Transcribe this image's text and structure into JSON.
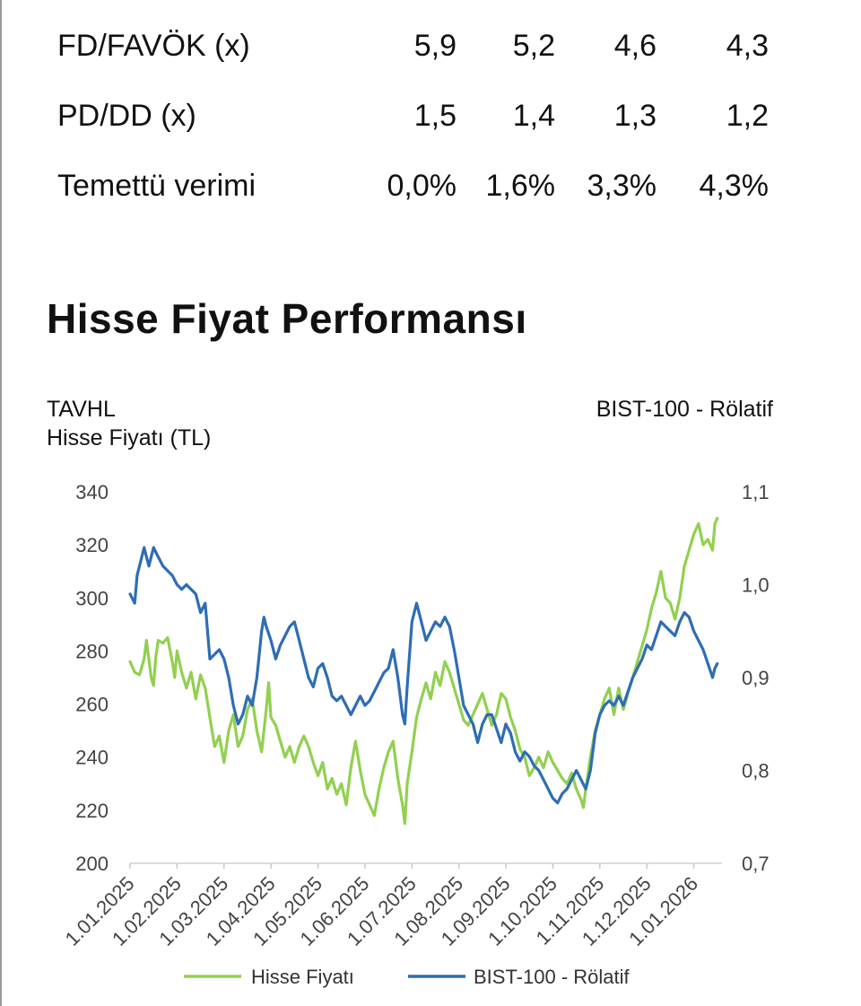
{
  "valuation_table": {
    "rows": [
      {
        "label": "FD/FAVÖK (x)",
        "values": [
          "5,9",
          "5,2",
          "4,6",
          "4,3"
        ]
      },
      {
        "label": "PD/DD (x)",
        "values": [
          "1,5",
          "1,4",
          "1,3",
          "1,2"
        ]
      },
      {
        "label": "Temettü verimi",
        "values": [
          "0,0%",
          "1,6%",
          "3,3%",
          "4,3%"
        ]
      }
    ]
  },
  "section": {
    "title": "Hisse Fiyat Performansı"
  },
  "chart_data": {
    "type": "line",
    "left_axis_title": [
      "TAVHL",
      "Hisse Fiyatı (TL)"
    ],
    "right_axis_title": "BIST-100 - Rölatif",
    "x_tick_labels": [
      "1.01.2025",
      "1.02.2025",
      "1.03.2025",
      "1.04.2025",
      "1.05.2025",
      "1.06.2025",
      "1.07.2025",
      "1.08.2025",
      "1.09.2025",
      "1.10.2025",
      "1.11.2025",
      "1.12.2025",
      "1.01.2026"
    ],
    "y_left": {
      "min": 200,
      "max": 340,
      "ticks": [
        200,
        220,
        240,
        260,
        280,
        300,
        320,
        340
      ],
      "tick_labels": [
        "200",
        "220",
        "240",
        "260",
        "280",
        "300",
        "320",
        "340"
      ]
    },
    "y_right": {
      "min": 0.7,
      "max": 1.1,
      "ticks": [
        0.7,
        0.8,
        0.9,
        1.0,
        1.1
      ],
      "tick_labels": [
        "0,7",
        "0,8",
        "0,9",
        "1,0",
        "1,1"
      ]
    },
    "x_range_months": [
      0,
      12.6
    ],
    "series": [
      {
        "name": "Hisse Fiyatı",
        "axis": "left",
        "color": "#92D050",
        "points": [
          [
            0,
            276
          ],
          [
            0.1,
            272
          ],
          [
            0.2,
            271
          ],
          [
            0.3,
            277
          ],
          [
            0.35,
            284
          ],
          [
            0.45,
            270
          ],
          [
            0.5,
            267
          ],
          [
            0.55,
            278
          ],
          [
            0.6,
            284
          ],
          [
            0.7,
            283
          ],
          [
            0.8,
            285
          ],
          [
            0.9,
            276
          ],
          [
            0.95,
            270
          ],
          [
            1.0,
            280
          ],
          [
            1.1,
            272
          ],
          [
            1.2,
            266
          ],
          [
            1.3,
            272
          ],
          [
            1.4,
            262
          ],
          [
            1.5,
            271
          ],
          [
            1.6,
            266
          ],
          [
            1.7,
            255
          ],
          [
            1.8,
            244
          ],
          [
            1.9,
            248
          ],
          [
            2.0,
            238
          ],
          [
            2.1,
            250
          ],
          [
            2.2,
            256
          ],
          [
            2.3,
            244
          ],
          [
            2.4,
            248
          ],
          [
            2.5,
            258
          ],
          [
            2.6,
            262
          ],
          [
            2.7,
            250
          ],
          [
            2.8,
            242
          ],
          [
            2.9,
            258
          ],
          [
            2.95,
            268
          ],
          [
            3.0,
            255
          ],
          [
            3.1,
            252
          ],
          [
            3.2,
            246
          ],
          [
            3.3,
            240
          ],
          [
            3.4,
            244
          ],
          [
            3.5,
            238
          ],
          [
            3.6,
            244
          ],
          [
            3.7,
            248
          ],
          [
            3.8,
            244
          ],
          [
            3.9,
            238
          ],
          [
            4.0,
            233
          ],
          [
            4.1,
            238
          ],
          [
            4.2,
            228
          ],
          [
            4.3,
            232
          ],
          [
            4.4,
            226
          ],
          [
            4.5,
            230
          ],
          [
            4.6,
            222
          ],
          [
            4.7,
            236
          ],
          [
            4.8,
            246
          ],
          [
            4.9,
            235
          ],
          [
            5.0,
            226
          ],
          [
            5.1,
            222
          ],
          [
            5.2,
            218
          ],
          [
            5.3,
            228
          ],
          [
            5.4,
            236
          ],
          [
            5.5,
            242
          ],
          [
            5.6,
            246
          ],
          [
            5.7,
            232
          ],
          [
            5.8,
            222
          ],
          [
            5.85,
            215
          ],
          [
            5.9,
            230
          ],
          [
            6.0,
            242
          ],
          [
            6.1,
            255
          ],
          [
            6.2,
            262
          ],
          [
            6.3,
            268
          ],
          [
            6.4,
            262
          ],
          [
            6.5,
            272
          ],
          [
            6.6,
            267
          ],
          [
            6.7,
            276
          ],
          [
            6.8,
            272
          ],
          [
            6.9,
            266
          ],
          [
            7.0,
            260
          ],
          [
            7.1,
            254
          ],
          [
            7.2,
            252
          ],
          [
            7.3,
            256
          ],
          [
            7.4,
            260
          ],
          [
            7.5,
            264
          ],
          [
            7.6,
            258
          ],
          [
            7.7,
            252
          ],
          [
            7.8,
            256
          ],
          [
            7.9,
            264
          ],
          [
            8.0,
            262
          ],
          [
            8.1,
            255
          ],
          [
            8.2,
            250
          ],
          [
            8.3,
            243
          ],
          [
            8.4,
            240
          ],
          [
            8.5,
            233
          ],
          [
            8.6,
            236
          ],
          [
            8.7,
            240
          ],
          [
            8.8,
            236
          ],
          [
            8.9,
            242
          ],
          [
            9.0,
            238
          ],
          [
            9.1,
            235
          ],
          [
            9.2,
            232
          ],
          [
            9.3,
            230
          ],
          [
            9.4,
            234
          ],
          [
            9.5,
            228
          ],
          [
            9.6,
            224
          ],
          [
            9.65,
            221
          ],
          [
            9.7,
            228
          ],
          [
            9.8,
            240
          ],
          [
            9.9,
            250
          ],
          [
            10.0,
            256
          ],
          [
            10.1,
            262
          ],
          [
            10.2,
            266
          ],
          [
            10.3,
            256
          ],
          [
            10.4,
            266
          ],
          [
            10.5,
            258
          ],
          [
            10.6,
            264
          ],
          [
            10.7,
            270
          ],
          [
            10.8,
            276
          ],
          [
            10.9,
            282
          ],
          [
            11.0,
            288
          ],
          [
            11.1,
            296
          ],
          [
            11.2,
            302
          ],
          [
            11.3,
            310
          ],
          [
            11.4,
            300
          ],
          [
            11.5,
            298
          ],
          [
            11.6,
            292
          ],
          [
            11.7,
            300
          ],
          [
            11.8,
            312
          ],
          [
            11.9,
            318
          ],
          [
            12.0,
            324
          ],
          [
            12.1,
            328
          ],
          [
            12.2,
            320
          ],
          [
            12.3,
            322
          ],
          [
            12.4,
            318
          ],
          [
            12.45,
            328
          ],
          [
            12.5,
            330
          ]
        ]
      },
      {
        "name": "BIST-100 - Rölatif",
        "axis": "right",
        "color": "#2E6DB4",
        "points": [
          [
            0,
            0.99
          ],
          [
            0.1,
            0.98
          ],
          [
            0.15,
            1.01
          ],
          [
            0.2,
            1.02
          ],
          [
            0.25,
            1.03
          ],
          [
            0.3,
            1.04
          ],
          [
            0.35,
            1.03
          ],
          [
            0.4,
            1.02
          ],
          [
            0.5,
            1.04
          ],
          [
            0.6,
            1.03
          ],
          [
            0.7,
            1.02
          ],
          [
            0.8,
            1.015
          ],
          [
            0.9,
            1.01
          ],
          [
            1.0,
            1.0
          ],
          [
            1.1,
            0.995
          ],
          [
            1.2,
            1.0
          ],
          [
            1.3,
            0.995
          ],
          [
            1.4,
            0.99
          ],
          [
            1.5,
            0.97
          ],
          [
            1.6,
            0.98
          ],
          [
            1.7,
            0.92
          ],
          [
            1.8,
            0.925
          ],
          [
            1.9,
            0.93
          ],
          [
            2.0,
            0.92
          ],
          [
            2.1,
            0.9
          ],
          [
            2.2,
            0.87
          ],
          [
            2.3,
            0.85
          ],
          [
            2.4,
            0.86
          ],
          [
            2.5,
            0.88
          ],
          [
            2.6,
            0.87
          ],
          [
            2.7,
            0.9
          ],
          [
            2.8,
            0.95
          ],
          [
            2.85,
            0.965
          ],
          [
            2.9,
            0.955
          ],
          [
            3.0,
            0.94
          ],
          [
            3.1,
            0.92
          ],
          [
            3.2,
            0.935
          ],
          [
            3.3,
            0.945
          ],
          [
            3.4,
            0.955
          ],
          [
            3.5,
            0.96
          ],
          [
            3.6,
            0.94
          ],
          [
            3.7,
            0.92
          ],
          [
            3.8,
            0.9
          ],
          [
            3.9,
            0.89
          ],
          [
            4.0,
            0.91
          ],
          [
            4.1,
            0.915
          ],
          [
            4.2,
            0.9
          ],
          [
            4.3,
            0.88
          ],
          [
            4.4,
            0.875
          ],
          [
            4.5,
            0.88
          ],
          [
            4.6,
            0.87
          ],
          [
            4.7,
            0.86
          ],
          [
            4.8,
            0.87
          ],
          [
            4.9,
            0.88
          ],
          [
            5.0,
            0.87
          ],
          [
            5.1,
            0.875
          ],
          [
            5.2,
            0.885
          ],
          [
            5.3,
            0.895
          ],
          [
            5.4,
            0.905
          ],
          [
            5.5,
            0.91
          ],
          [
            5.6,
            0.93
          ],
          [
            5.7,
            0.9
          ],
          [
            5.8,
            0.86
          ],
          [
            5.85,
            0.85
          ],
          [
            5.9,
            0.89
          ],
          [
            6.0,
            0.96
          ],
          [
            6.1,
            0.98
          ],
          [
            6.2,
            0.96
          ],
          [
            6.3,
            0.94
          ],
          [
            6.4,
            0.95
          ],
          [
            6.5,
            0.96
          ],
          [
            6.6,
            0.955
          ],
          [
            6.7,
            0.965
          ],
          [
            6.8,
            0.955
          ],
          [
            6.9,
            0.93
          ],
          [
            7.0,
            0.9
          ],
          [
            7.1,
            0.87
          ],
          [
            7.2,
            0.86
          ],
          [
            7.3,
            0.85
          ],
          [
            7.4,
            0.83
          ],
          [
            7.5,
            0.85
          ],
          [
            7.6,
            0.86
          ],
          [
            7.7,
            0.86
          ],
          [
            7.8,
            0.845
          ],
          [
            7.9,
            0.83
          ],
          [
            8.0,
            0.85
          ],
          [
            8.1,
            0.84
          ],
          [
            8.2,
            0.82
          ],
          [
            8.3,
            0.81
          ],
          [
            8.4,
            0.82
          ],
          [
            8.5,
            0.815
          ],
          [
            8.6,
            0.805
          ],
          [
            8.7,
            0.8
          ],
          [
            8.8,
            0.79
          ],
          [
            8.9,
            0.78
          ],
          [
            9.0,
            0.77
          ],
          [
            9.1,
            0.765
          ],
          [
            9.2,
            0.775
          ],
          [
            9.3,
            0.78
          ],
          [
            9.4,
            0.79
          ],
          [
            9.5,
            0.8
          ],
          [
            9.6,
            0.79
          ],
          [
            9.7,
            0.78
          ],
          [
            9.8,
            0.8
          ],
          [
            9.9,
            0.84
          ],
          [
            10.0,
            0.86
          ],
          [
            10.1,
            0.87
          ],
          [
            10.2,
            0.875
          ],
          [
            10.3,
            0.87
          ],
          [
            10.4,
            0.88
          ],
          [
            10.5,
            0.87
          ],
          [
            10.6,
            0.885
          ],
          [
            10.7,
            0.9
          ],
          [
            10.8,
            0.91
          ],
          [
            10.9,
            0.92
          ],
          [
            11.0,
            0.935
          ],
          [
            11.1,
            0.93
          ],
          [
            11.2,
            0.945
          ],
          [
            11.3,
            0.96
          ],
          [
            11.4,
            0.955
          ],
          [
            11.5,
            0.95
          ],
          [
            11.6,
            0.945
          ],
          [
            11.7,
            0.96
          ],
          [
            11.8,
            0.97
          ],
          [
            11.9,
            0.965
          ],
          [
            12.0,
            0.95
          ],
          [
            12.1,
            0.94
          ],
          [
            12.2,
            0.93
          ],
          [
            12.3,
            0.915
          ],
          [
            12.4,
            0.9
          ],
          [
            12.45,
            0.91
          ],
          [
            12.5,
            0.915
          ]
        ]
      }
    ]
  }
}
